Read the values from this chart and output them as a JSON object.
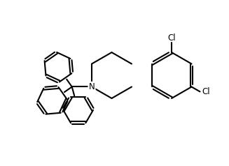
{
  "lw": 1.5,
  "bg": "#ffffff",
  "bc": "#000000",
  "tc": "#000000",
  "cl_fs": 8.5,
  "n_fs": 8.5,
  "xlim": [
    0,
    10
  ],
  "ylim": [
    0,
    7.5
  ],
  "figw": 3.27,
  "figh": 2.38,
  "dpi": 100
}
